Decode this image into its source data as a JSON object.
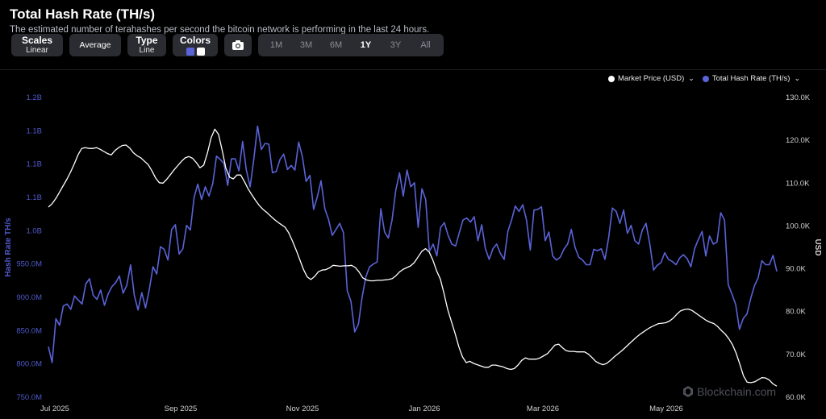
{
  "header": {
    "title": "Total Hash Rate (TH/s)",
    "subtitle": "The estimated number of terahashes per second the bitcoin network is performing in the last 24 hours."
  },
  "toolbar": {
    "scales_label": "Scales",
    "scales_value": "Linear",
    "average_label": "Average",
    "type_label": "Type",
    "type_value": "Line",
    "colors_label": "Colors",
    "color_1": "#5a63d8",
    "color_2": "#ffffff",
    "camera_icon": "camera-icon",
    "ranges": [
      "1M",
      "3M",
      "6M",
      "1Y",
      "3Y",
      "All"
    ],
    "active_range": "1Y"
  },
  "legend": {
    "market_price": "Market Price (USD)",
    "hash_rate": "Total Hash Rate (TH/s)",
    "market_price_color": "#ffffff",
    "hash_rate_color": "#5a63d8"
  },
  "watermark": "Blockchain.com",
  "chart_data": {
    "type": "line",
    "x_ticks": [
      "Jul 2025",
      "Sep 2025",
      "Nov 2025",
      "Jan 2026",
      "Mar 2026",
      "May 2026"
    ],
    "left_axis": {
      "label": "Hash Rate TH/s",
      "ticks": [
        "750.0M",
        "800.0M",
        "850.0M",
        "900.0M",
        "950.0M",
        "1.0B",
        "1.1B",
        "1.1B",
        "1.1B",
        "1.2B"
      ],
      "min": 750000000,
      "max": 1200000000,
      "color": "#5a63d8"
    },
    "right_axis": {
      "label": "USD",
      "ticks": [
        "60.0K",
        "70.0K",
        "80.0K",
        "90.0K",
        "100.0K",
        "110.0K",
        "120.0K",
        "130.0K"
      ],
      "min": 60000,
      "max": 130000,
      "color": "#ffffff"
    },
    "series": [
      {
        "name": "Total Hash Rate (TH/s)",
        "axis": "left",
        "color": "#5a63d8",
        "values": [
          826,
          802,
          868,
          858,
          887,
          890,
          882,
          902,
          896,
          890,
          920,
          928,
          903,
          897,
          911,
          888,
          905,
          916,
          922,
          932,
          906,
          918,
          949,
          903,
          881,
          907,
          884,
          911,
          946,
          935,
          976,
          972,
          956,
          1002,
          1009,
          965,
          973,
          1008,
          1001,
          1050,
          1070,
          1047,
          1066,
          1052,
          1071,
          1112,
          1107,
          1101,
          1068,
          1108,
          1108,
          1090,
          1134,
          1091,
          1066,
          1108,
          1157,
          1122,
          1131,
          1130,
          1087,
          1089,
          1107,
          1115,
          1092,
          1098,
          1091,
          1133,
          1111,
          1074,
          1083,
          1032,
          1051,
          1075,
          1033,
          1017,
          993,
          1002,
          1011,
          997,
          910,
          894,
          848,
          860,
          901,
          931,
          946,
          950,
          953,
          1033,
          998,
          989,
          1016,
          1061,
          1087,
          1052,
          1091,
          1066,
          1072,
          1005,
          1063,
          1047,
          969,
          980,
          962,
          1005,
          1012,
          993,
          980,
          977,
          997,
          1016,
          1019,
          1013,
          1021,
          985,
          1009,
          973,
          957,
          973,
          980,
          966,
          957,
          999,
          1016,
          1037,
          1029,
          1039,
          1016,
          971,
          1031,
          1032,
          1036,
          985,
          998,
          962,
          956,
          960,
          972,
          980,
          1002,
          975,
          960,
          956,
          949,
          949,
          972,
          970,
          973,
          957,
          990,
          1034,
          1029,
          1011,
          1031,
          996,
          1008,
          985,
          980,
          1001,
          1011,
          980,
          941,
          948,
          952,
          967,
          957,
          954,
          949,
          959,
          964,
          958,
          946,
          973,
          987,
          999,
          962,
          992,
          980,
          983,
          1027,
          1016,
          919,
          905,
          889,
          852,
          868,
          875,
          898,
          917,
          929,
          955,
          949,
          949,
          963,
          939
        ]
      },
      {
        "name": "Market Price (USD)",
        "axis": "right",
        "color": "#ffffff",
        "values": [
          104.4,
          105.2,
          106.4,
          107.9,
          109.4,
          110.9,
          112.6,
          114.5,
          116.6,
          118.1,
          118.3,
          118.1,
          118.1,
          118.3,
          117.9,
          117.4,
          116.9,
          116.6,
          117.6,
          118.3,
          118.8,
          118.9,
          118.2,
          117.1,
          116.4,
          115.9,
          115.1,
          114.3,
          112.9,
          111.2,
          110.1,
          110.0,
          110.9,
          112.0,
          113.1,
          114.1,
          115.1,
          115.9,
          116.2,
          115.8,
          114.8,
          113.6,
          114.2,
          117.0,
          120.6,
          122.6,
          121.4,
          117.7,
          113.5,
          111.4,
          111.0,
          111.9,
          111.9,
          110.4,
          108.7,
          107.3,
          106.0,
          104.8,
          103.9,
          103.2,
          102.4,
          101.6,
          100.9,
          100.3,
          99.7,
          98.4,
          96.5,
          94.4,
          92.1,
          89.8,
          88.1,
          87.5,
          88.2,
          89.3,
          89.7,
          89.8,
          90.2,
          90.8,
          90.7,
          90.6,
          90.7,
          90.7,
          90.8,
          90.3,
          89.3,
          87.9,
          87.4,
          87.2,
          87.2,
          87.3,
          87.3,
          87.4,
          87.5,
          87.7,
          88.4,
          89.3,
          89.9,
          90.3,
          90.7,
          91.5,
          92.8,
          94.1,
          94.7,
          93.9,
          92.0,
          89.5,
          87.6,
          84.2,
          80.5,
          77.7,
          74.9,
          71.8,
          69.4,
          68.1,
          68.4,
          67.9,
          67.6,
          67.3,
          67.0,
          67.0,
          67.5,
          67.5,
          67.3,
          67.1,
          66.7,
          66.5,
          66.7,
          67.5,
          68.6,
          69.2,
          68.9,
          68.9,
          68.9,
          69.2,
          69.7,
          70.2,
          71.2,
          72.2,
          72.4,
          71.6,
          70.9,
          70.7,
          70.7,
          70.6,
          70.6,
          70.6,
          70.1,
          69.3,
          68.4,
          67.9,
          67.6,
          67.9,
          68.6,
          69.4,
          70.1,
          70.8,
          71.6,
          72.4,
          73.2,
          74.0,
          74.7,
          75.3,
          75.9,
          76.4,
          76.8,
          77.2,
          77.3,
          77.4,
          77.8,
          78.5,
          79.4,
          80.2,
          80.5,
          80.6,
          80.3,
          79.7,
          79.1,
          78.5,
          77.9,
          77.5,
          77.2,
          76.5,
          75.6,
          74.8,
          73.7,
          72.3,
          70.3,
          67.7,
          65.0,
          63.5,
          63.4,
          63.6,
          64.1,
          64.6,
          64.5,
          64.0,
          63.1,
          62.6
        ]
      }
    ]
  }
}
